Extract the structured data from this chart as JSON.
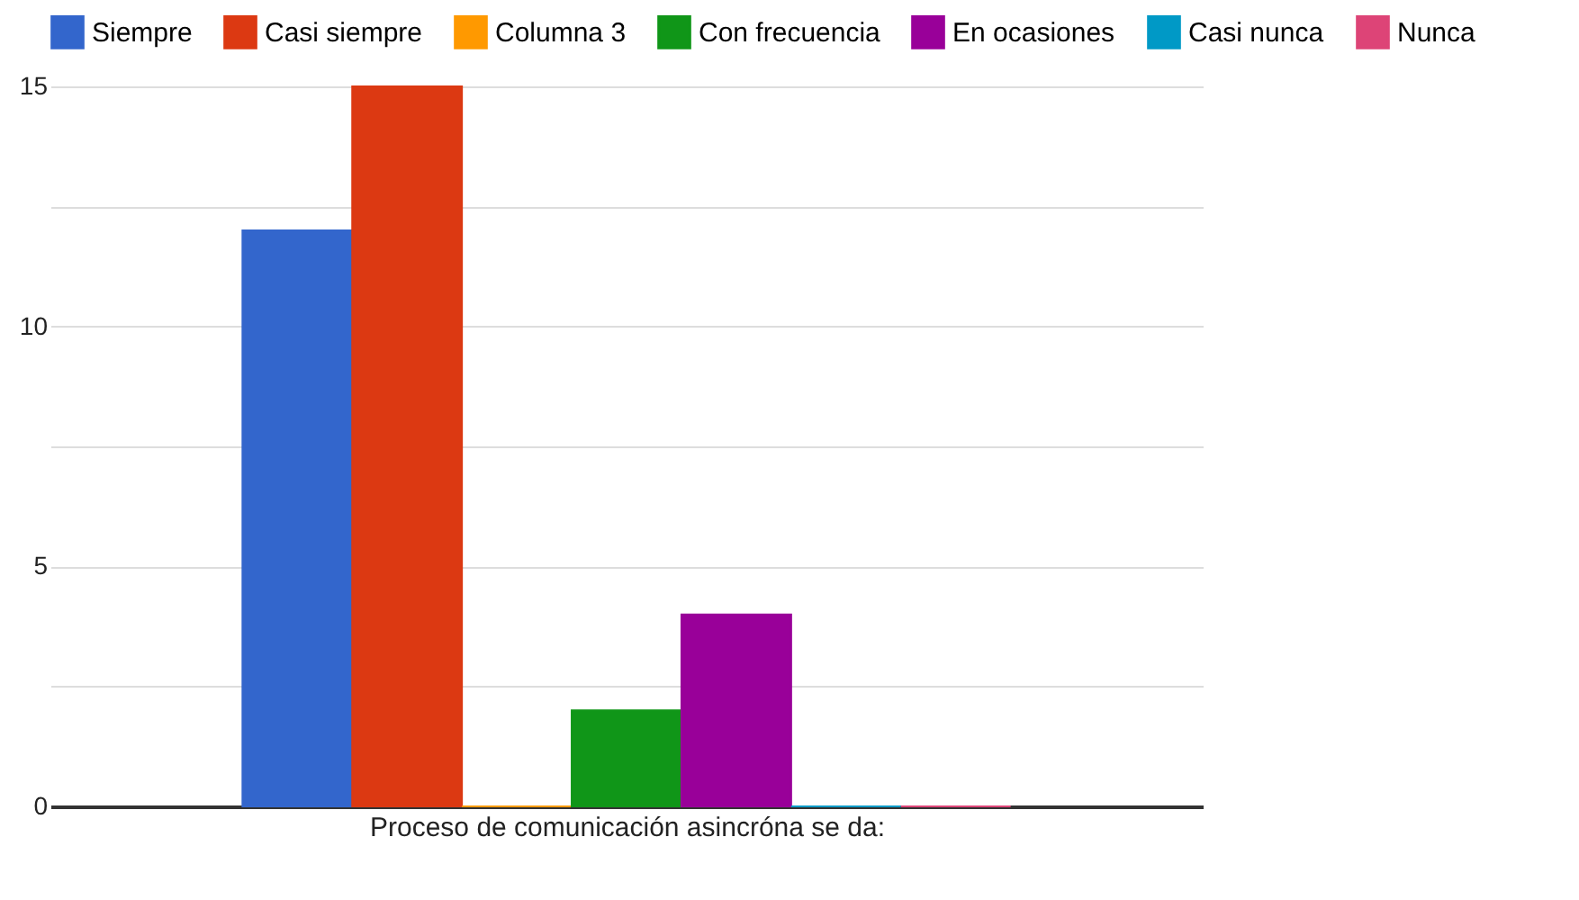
{
  "chart_data": {
    "type": "bar",
    "xlabel": "Proceso de comunicación asincróna se da:",
    "categories": [
      null
    ],
    "series": [
      {
        "name": "Siempre",
        "color": "#3366cc",
        "values": [
          12
        ]
      },
      {
        "name": "Casi siempre",
        "color": "#dc3912",
        "values": [
          15
        ]
      },
      {
        "name": "Columna 3",
        "color": "#ff9900",
        "values": [
          0
        ]
      },
      {
        "name": "Con frecuencia",
        "color": "#109618",
        "values": [
          2
        ]
      },
      {
        "name": "En ocasiones",
        "color": "#990099",
        "values": [
          4
        ]
      },
      {
        "name": "Casi nunca",
        "color": "#0099c6",
        "values": [
          0
        ]
      },
      {
        "name": "Nunca",
        "color": "#dd4477",
        "values": [
          0
        ]
      }
    ],
    "ylim": [
      0,
      15
    ],
    "yticks": [
      0,
      {
        "value": 2.5,
        "label": null
      },
      5,
      {
        "value": 7.5,
        "label": null
      },
      10,
      {
        "value": 12.5,
        "label": null
      },
      15
    ],
    "grid": "y",
    "legend": "top"
  }
}
